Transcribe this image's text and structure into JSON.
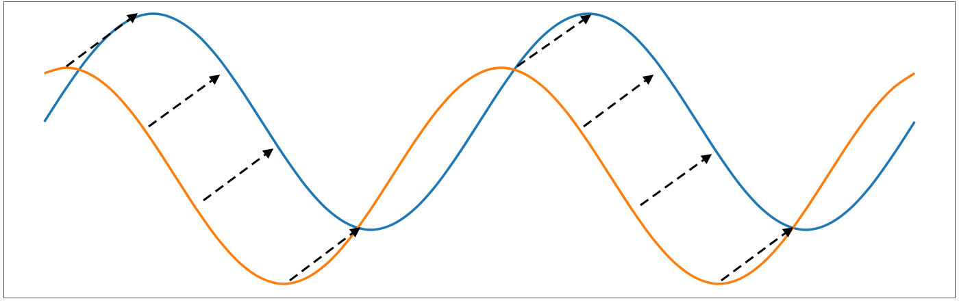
{
  "chart_data": {
    "type": "line",
    "x": [
      0,
      0.05,
      0.1,
      0.15,
      0.2,
      0.25,
      0.3,
      0.35,
      0.4,
      0.45,
      0.5,
      0.55,
      0.6,
      0.65,
      0.7,
      0.75,
      0.8,
      0.85,
      0.9,
      0.95,
      1,
      1.05,
      1.1,
      1.15,
      1.2,
      1.25,
      1.3,
      1.35,
      1.4,
      1.45,
      1.5,
      1.55,
      1.6,
      1.65,
      1.7,
      1.75,
      1.8,
      1.85,
      1.9,
      1.95,
      2
    ],
    "series": [
      {
        "color": "#1f77b4",
        "values": [
          0,
          0.31,
          0.59,
          0.81,
          0.95,
          1,
          0.95,
          0.81,
          0.59,
          0.31,
          0,
          -0.31,
          -0.59,
          -0.81,
          -0.95,
          -1,
          -0.95,
          -0.81,
          -0.59,
          -0.31,
          0,
          0.31,
          0.59,
          0.81,
          0.95,
          1,
          0.95,
          0.81,
          0.59,
          0.31,
          0,
          -0.31,
          -0.59,
          -0.81,
          -0.95,
          -1,
          -0.95,
          -0.81,
          -0.59,
          -0.31,
          0
        ]
      },
      {
        "color": "#ff7f0e",
        "values": [
          0.45,
          0.5,
          0.45,
          0.31,
          0.09,
          -0.19,
          -0.5,
          -0.81,
          -1.09,
          -1.31,
          -1.45,
          -1.5,
          -1.45,
          -1.31,
          -1.09,
          -0.81,
          -0.5,
          -0.19,
          0.09,
          0.31,
          0.45,
          0.5,
          0.45,
          0.31,
          0.09,
          -0.19,
          -0.5,
          -0.81,
          -1.09,
          -1.31,
          -1.45,
          -1.5,
          -1.45,
          -1.31,
          -1.09,
          -0.81,
          -0.5,
          -0.19,
          0.09,
          0.31,
          0.45
        ]
      }
    ],
    "xlim": [
      -0.094,
      2.094
    ],
    "ylim": [
      -1.633,
      1.114
    ]
  }
}
